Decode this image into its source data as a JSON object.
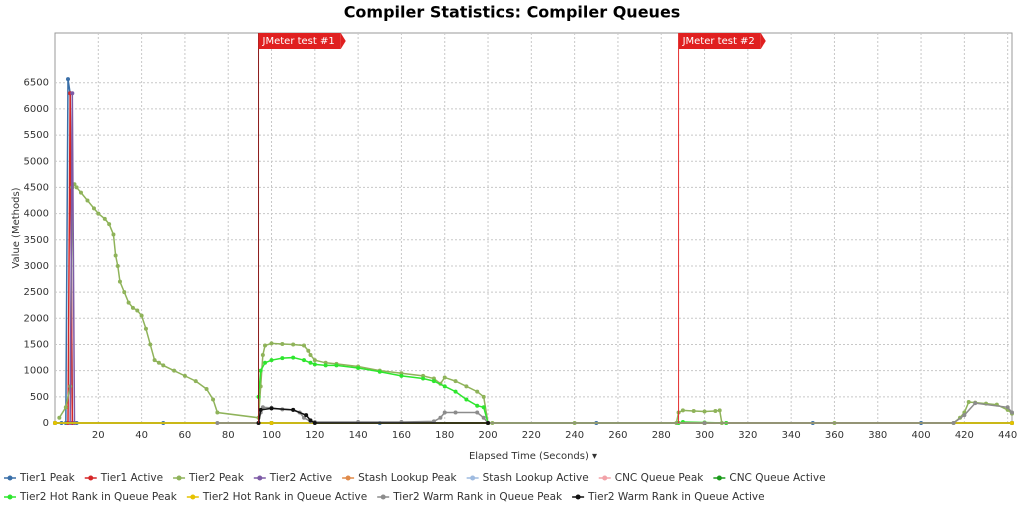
{
  "chart_data": {
    "type": "line",
    "title": "Compiler Statistics: Compiler Queues",
    "x_label": "Elapsed Time (Seconds) ▾",
    "y_label": "Value (Methods)",
    "xlim": [
      0,
      442
    ],
    "ylim": [
      0,
      7450
    ],
    "xticks": [
      20,
      40,
      60,
      80,
      100,
      120,
      140,
      160,
      180,
      200,
      220,
      240,
      260,
      280,
      300,
      320,
      340,
      360,
      380,
      400,
      420,
      440
    ],
    "yticks": [
      0,
      500,
      1000,
      1500,
      2000,
      2500,
      3000,
      3500,
      4000,
      4500,
      5000,
      5500,
      6000,
      6500
    ],
    "grid": true,
    "legend": "bottom",
    "annotations": [
      {
        "x": 94,
        "label": "JMeter test #1",
        "color": "#8b1a1a"
      },
      {
        "x": 288,
        "label": "JMeter test #2",
        "color": "#e53030"
      }
    ],
    "series": [
      {
        "name": "Tier1 Peak",
        "color": "#3a6fa8",
        "x": [
          0,
          3,
          5,
          6,
          7,
          8,
          10,
          50,
          100,
          150,
          200,
          250,
          300,
          350,
          400,
          442
        ],
        "values": [
          0,
          0,
          0,
          6570,
          6300,
          0,
          0,
          0,
          0,
          0,
          0,
          0,
          0,
          0,
          0,
          0
        ]
      },
      {
        "name": "Tier1 Active",
        "color": "#d62728",
        "x": [
          0,
          6,
          7,
          8,
          442
        ],
        "values": [
          0,
          0,
          6300,
          0,
          0
        ]
      },
      {
        "name": "Tier2 Peak",
        "color": "#8fb35a",
        "x": [
          2,
          5,
          7,
          8,
          9,
          10,
          12,
          15,
          18,
          20,
          23,
          25,
          27,
          28,
          29,
          30,
          32,
          34,
          36,
          38,
          40,
          42,
          44,
          46,
          48,
          50,
          55,
          60,
          65,
          70,
          73,
          75,
          94,
          95,
          96,
          97,
          100,
          105,
          110,
          115,
          117,
          118,
          120,
          125,
          130,
          140,
          150,
          160,
          170,
          175,
          178,
          180,
          185,
          190,
          195,
          198,
          200,
          202,
          240,
          287,
          288,
          290,
          295,
          300,
          305,
          307,
          308,
          310,
          360,
          415,
          418,
          420,
          422,
          425,
          430,
          435,
          440,
          442
        ],
        "values": [
          100,
          300,
          700,
          4500,
          4560,
          4500,
          4400,
          4250,
          4100,
          4000,
          3900,
          3800,
          3600,
          3200,
          3000,
          2700,
          2500,
          2300,
          2200,
          2150,
          2050,
          1800,
          1500,
          1200,
          1150,
          1100,
          1000,
          900,
          800,
          650,
          450,
          200,
          100,
          700,
          1300,
          1480,
          1520,
          1510,
          1500,
          1480,
          1380,
          1300,
          1200,
          1150,
          1130,
          1080,
          1000,
          950,
          900,
          850,
          750,
          870,
          800,
          700,
          600,
          500,
          0,
          0,
          0,
          0,
          200,
          240,
          230,
          220,
          230,
          240,
          0,
          0,
          0,
          0,
          100,
          200,
          400,
          390,
          370,
          350,
          250,
          180
        ]
      },
      {
        "name": "Tier2 Active",
        "color": "#7d5ba6",
        "x": [
          0,
          7,
          8,
          9,
          442
        ],
        "values": [
          0,
          0,
          6300,
          0,
          0
        ]
      },
      {
        "name": "Stash Lookup Peak",
        "color": "#e08a4a",
        "x": [
          0,
          100,
          200,
          300,
          442
        ],
        "values": [
          0,
          0,
          0,
          0,
          0
        ]
      },
      {
        "name": "Stash Lookup Active",
        "color": "#9fbbe0",
        "x": [
          0,
          100,
          200,
          300,
          442
        ],
        "values": [
          0,
          0,
          0,
          0,
          0
        ]
      },
      {
        "name": "CNC Queue Peak",
        "color": "#f2a2a8",
        "x": [
          0,
          100,
          200,
          300,
          442
        ],
        "values": [
          0,
          0,
          0,
          0,
          0
        ]
      },
      {
        "name": "CNC Queue Active",
        "color": "#1a9a1a",
        "x": [
          0,
          100,
          200,
          300,
          442
        ],
        "values": [
          0,
          0,
          0,
          0,
          0
        ]
      },
      {
        "name": "Tier2 Hot Rank in Queue Peak",
        "color": "#2ee62e",
        "x": [
          94,
          95,
          97,
          100,
          105,
          110,
          115,
          118,
          120,
          125,
          130,
          140,
          150,
          160,
          170,
          175,
          180,
          185,
          190,
          195,
          198,
          200,
          288,
          290,
          300,
          310
        ],
        "values": [
          500,
          1000,
          1150,
          1200,
          1240,
          1250,
          1200,
          1150,
          1120,
          1100,
          1100,
          1050,
          980,
          900,
          850,
          800,
          700,
          600,
          450,
          330,
          300,
          0,
          0,
          20,
          10,
          0
        ]
      },
      {
        "name": "Tier2 Hot Rank in Queue Active",
        "color": "#e6c200",
        "x": [
          0,
          100,
          200,
          300,
          442
        ],
        "values": [
          0,
          0,
          0,
          0,
          0
        ]
      },
      {
        "name": "Tier2 Warm Rank in Queue Peak",
        "color": "#8c8c8c",
        "x": [
          75,
          94,
          95,
          96,
          100,
          105,
          110,
          113,
          115,
          118,
          120,
          140,
          160,
          175,
          178,
          180,
          185,
          195,
          198,
          200,
          300,
          415,
          420,
          425,
          440,
          442
        ],
        "values": [
          0,
          0,
          200,
          300,
          290,
          260,
          250,
          200,
          100,
          30,
          20,
          20,
          20,
          30,
          100,
          200,
          200,
          200,
          100,
          0,
          0,
          0,
          150,
          380,
          300,
          200
        ]
      },
      {
        "name": "Tier2 Warm Rank in Queue Active",
        "color": "#111111",
        "x": [
          94,
          95,
          100,
          110,
          116,
          118,
          120,
          200
        ],
        "values": [
          0,
          250,
          280,
          250,
          150,
          50,
          0,
          0
        ]
      }
    ]
  }
}
